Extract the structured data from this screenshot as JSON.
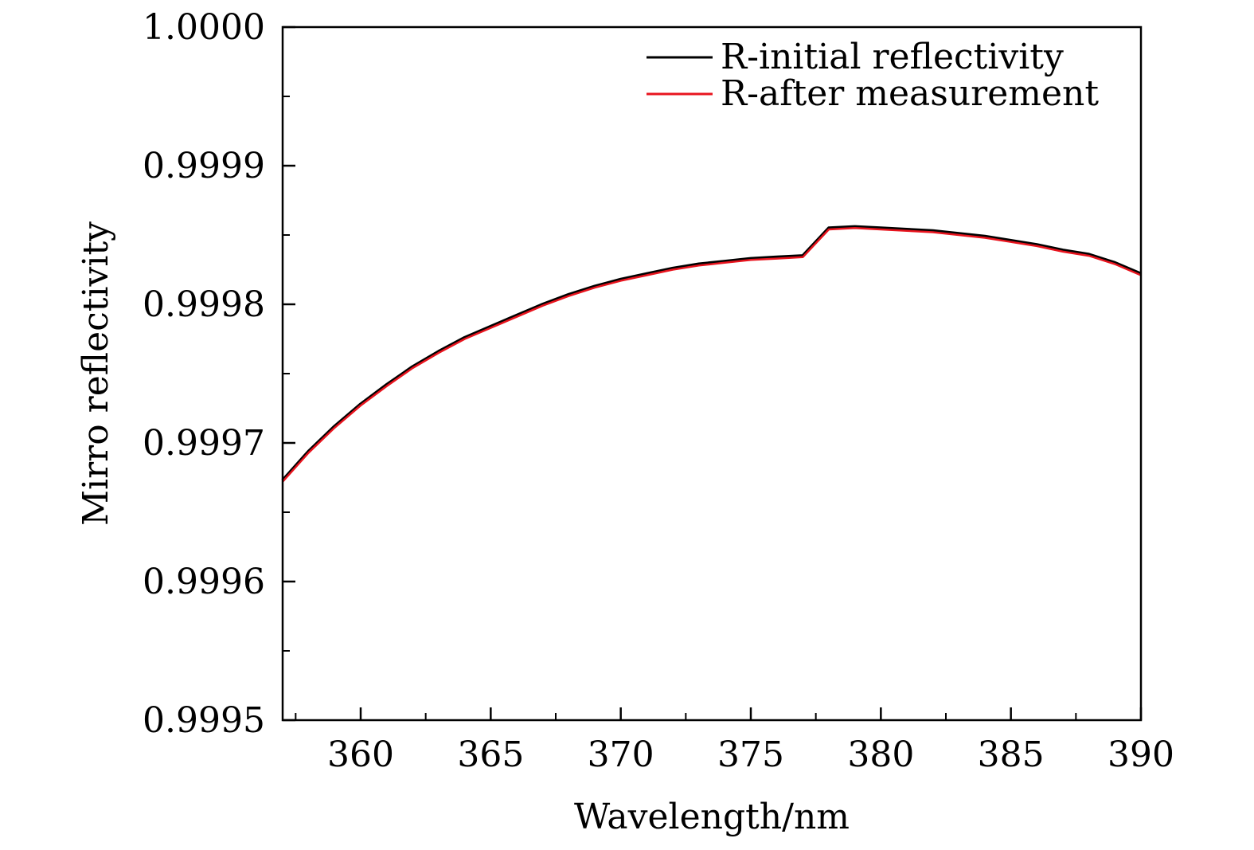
{
  "chart_data": {
    "type": "line",
    "title": "",
    "xlabel": "Wavelength/nm",
    "ylabel": "Mirro reflectivity",
    "xlim": [
      357,
      390
    ],
    "ylim": [
      0.9995,
      1.0
    ],
    "xticks": [
      360,
      365,
      370,
      375,
      380,
      385,
      390
    ],
    "xtick_labels": [
      "360",
      "365",
      "370",
      "375",
      "380",
      "385",
      "390"
    ],
    "yticks": [
      0.9995,
      0.9996,
      0.9997,
      0.9998,
      0.9999,
      1.0
    ],
    "ytick_labels": [
      "0.9995",
      "0.9996",
      "0.9997",
      "0.9998",
      "0.9999",
      "1.0000"
    ],
    "grid": false,
    "legend_position": "top-right",
    "series": [
      {
        "name": "R-initial reflectivity",
        "color": "#000000",
        "x": [
          357,
          358,
          359,
          360,
          361,
          362,
          363,
          364,
          365,
          366,
          367,
          368,
          369,
          370,
          371,
          372,
          373,
          374,
          375,
          376,
          377,
          378,
          379,
          380,
          381,
          382,
          383,
          384,
          385,
          386,
          387,
          388,
          389,
          390
        ],
        "y": [
          0.999673,
          0.999694,
          0.999712,
          0.999728,
          0.999742,
          0.999755,
          0.999766,
          0.999776,
          0.999784,
          0.999792,
          0.9998,
          0.999807,
          0.999813,
          0.999818,
          0.999822,
          0.999826,
          0.999829,
          0.999831,
          0.999833,
          0.999834,
          0.999835,
          0.999855,
          0.999856,
          0.999855,
          0.999854,
          0.999853,
          0.999851,
          0.999849,
          0.999846,
          0.999843,
          0.999839,
          0.999836,
          0.99983,
          0.999822
        ]
      },
      {
        "name": "R-after measurement",
        "color": "#e8141e",
        "x": [
          357,
          358,
          359,
          360,
          361,
          362,
          363,
          364,
          365,
          366,
          367,
          368,
          369,
          370,
          371,
          372,
          373,
          374,
          375,
          376,
          377,
          378,
          379,
          380,
          381,
          382,
          383,
          384,
          385,
          386,
          387,
          388,
          389,
          390
        ],
        "y": [
          0.999672,
          0.999693,
          0.999711,
          0.999727,
          0.999741,
          0.999754,
          0.999765,
          0.999775,
          0.999783,
          0.999791,
          0.999799,
          0.999806,
          0.999812,
          0.999817,
          0.999821,
          0.999825,
          0.999828,
          0.99983,
          0.999832,
          0.999833,
          0.999834,
          0.999854,
          0.999855,
          0.999854,
          0.999853,
          0.999852,
          0.99985,
          0.999848,
          0.999845,
          0.999842,
          0.999838,
          0.999835,
          0.999829,
          0.999821
        ]
      }
    ]
  }
}
